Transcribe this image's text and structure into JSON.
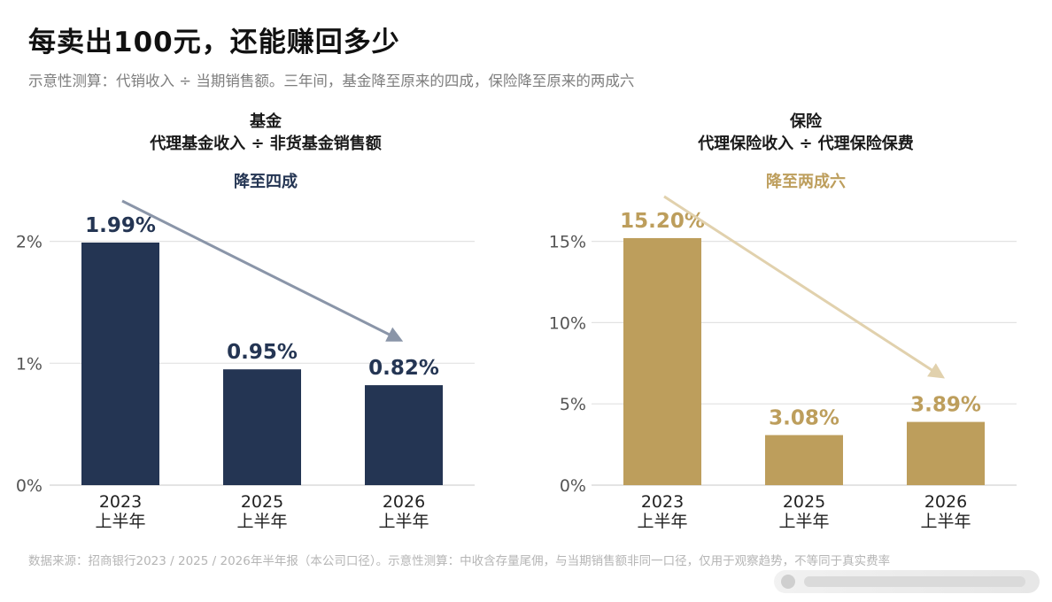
{
  "title": "每卖出100元，还能赚回多少",
  "subtitle": "示意性测算：代销收入 ÷ 当期销售额。三年间，基金降至原来的四成，保险降至原来的两成六",
  "source": "数据来源：招商银行2023 / 2025 / 2026年半年报（本公司口径）。示意性测算：中收含存量尾佣，与当期销售额非同一口径，仅用于观察趋势，不等同于真实费率",
  "colors": {
    "fund": "#243553",
    "insurance": "#bd9e5c",
    "grid": "#e2e2e2",
    "axis_text": "#555555"
  },
  "chart_data": [
    {
      "type": "bar",
      "title": "基金",
      "subtitle": "代理基金收入 ÷ 非货基金销售额",
      "annotation": "降至四成",
      "categories": [
        "2023\n上半年",
        "2025\n上半年",
        "2026\n上半年"
      ],
      "values": [
        1.99,
        0.95,
        0.82
      ],
      "value_labels": [
        "1.99%",
        "0.95%",
        "0.82%"
      ],
      "yticks": [
        "0%",
        "1%",
        "2%"
      ],
      "ytick_values": [
        0,
        1,
        2
      ],
      "ylim": [
        0,
        2.6
      ],
      "grid": true,
      "color": "#243553",
      "arrow_color": "#8a95a8",
      "trend_arrow": true
    },
    {
      "type": "bar",
      "title": "保险",
      "subtitle": "代理保险收入 ÷ 代理保险保费",
      "annotation": "降至两成六",
      "categories": [
        "2023\n上半年",
        "2025\n上半年",
        "2026\n上半年"
      ],
      "values": [
        15.2,
        3.08,
        3.89
      ],
      "value_labels": [
        "15.20%",
        "3.08%",
        "3.89%"
      ],
      "yticks": [
        "0%",
        "5%",
        "10%",
        "15%"
      ],
      "ytick_values": [
        0,
        5,
        10,
        15
      ],
      "ylim": [
        0,
        19.5
      ],
      "grid": true,
      "color": "#bd9e5c",
      "arrow_color": "#e1d1ad",
      "trend_arrow": true
    }
  ]
}
